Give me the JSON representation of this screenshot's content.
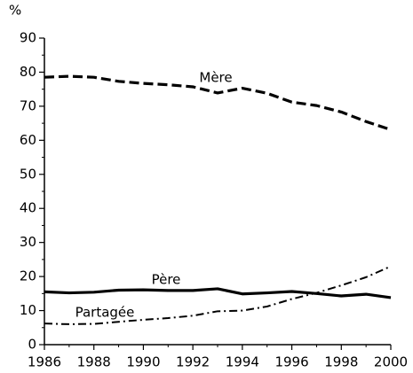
{
  "chart_data": {
    "type": "line",
    "ylabel": "%",
    "x": [
      1986,
      1987,
      1988,
      1989,
      1990,
      1991,
      1992,
      1993,
      1994,
      1995,
      1996,
      1997,
      1998,
      1999,
      2000
    ],
    "series": [
      {
        "name": "Mère",
        "color": "#000000",
        "style": "dashed",
        "values": [
          78.5,
          78.8,
          78.5,
          77.3,
          76.7,
          76.3,
          75.7,
          73.9,
          75.3,
          73.8,
          71.2,
          70.2,
          68.3,
          65.5,
          63.1
        ]
      },
      {
        "name": "Père",
        "color": "#000000",
        "style": "solid",
        "values": [
          15.5,
          15.2,
          15.4,
          16.0,
          16.1,
          15.9,
          15.9,
          16.4,
          14.9,
          15.2,
          15.6,
          15.0,
          14.3,
          14.8,
          13.8
        ]
      },
      {
        "name": "Partagée",
        "color": "#000000",
        "style": "dashdot",
        "values": [
          6.2,
          6.0,
          6.1,
          6.7,
          7.3,
          7.8,
          8.5,
          9.8,
          10.0,
          11.2,
          13.4,
          15.2,
          17.4,
          19.8,
          23.0
        ]
      }
    ],
    "xlim": [
      1986,
      2000
    ],
    "xticks": [
      1986,
      1988,
      1990,
      1992,
      1994,
      1996,
      1998,
      2000
    ],
    "ylim": [
      0,
      90
    ],
    "yticks": [
      0,
      10,
      20,
      30,
      40,
      50,
      60,
      70,
      80,
      90
    ]
  }
}
